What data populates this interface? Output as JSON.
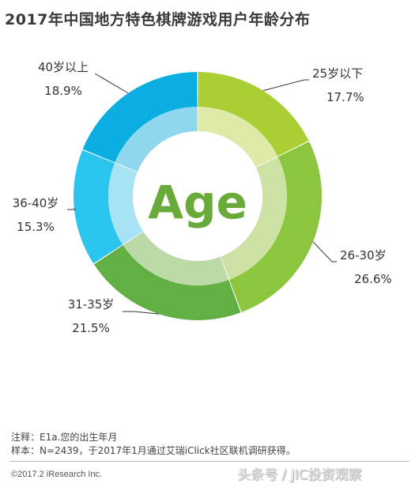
{
  "header": {
    "title": "2017年中国地方特色棋牌游戏用户年龄分布"
  },
  "chart_data": {
    "type": "pie",
    "style": "donut",
    "center_label": "Age",
    "categories": [
      "25岁以下",
      "26-30岁",
      "31-35岁",
      "36-40岁",
      "40岁以上"
    ],
    "values": [
      17.7,
      26.6,
      21.5,
      15.3,
      18.9
    ],
    "value_labels": [
      "17.7%",
      "26.6%",
      "21.5%",
      "15.3%",
      "18.9%"
    ],
    "colors": [
      "#aacf34",
      "#8cc63f",
      "#62b043",
      "#29c5ef",
      "#0aaee0"
    ],
    "inner_colors": [
      "#dfeaa8",
      "#cde3a6",
      "#bcd9a8",
      "#a7e3f5",
      "#8fd6ef"
    ],
    "center_text_color": "#6aaa3a"
  },
  "footer": {
    "note": "注释：E1a.您的出生年月",
    "sample": "样本：N=2439，于2017年1月通过艾瑞iClick社区联机调研获得。",
    "copyright": "©2017.2 iResearch Inc.",
    "watermark": "头条号 / JIC投资观察"
  }
}
